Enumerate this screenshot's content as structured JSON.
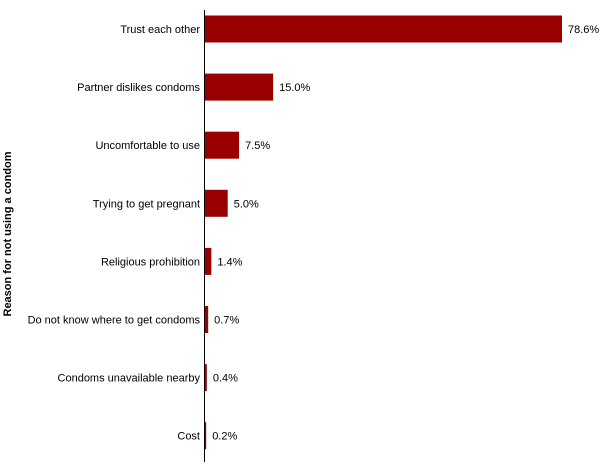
{
  "chart_data": {
    "type": "bar",
    "orientation": "horizontal",
    "title": "",
    "xlabel": "",
    "ylabel": "Reason for not using a condom",
    "categories": [
      "Trust each other",
      "Partner dislikes condoms",
      "Uncomfortable to use",
      "Trying to get pregnant",
      "Religious prohibition",
      "Do not know where to get condoms",
      "Condoms unavailable nearby",
      "Cost"
    ],
    "values": [
      78.6,
      15.0,
      7.5,
      5.0,
      1.4,
      0.7,
      0.4,
      0.2
    ],
    "value_labels": [
      "78.6%",
      "15.0%",
      "7.5%",
      "5.0%",
      "1.4%",
      "0.7%",
      "0.4%",
      "0.2%"
    ],
    "xlim": [
      0,
      78.6
    ],
    "bar_color": "#990000",
    "grid": false,
    "legend": "none"
  }
}
